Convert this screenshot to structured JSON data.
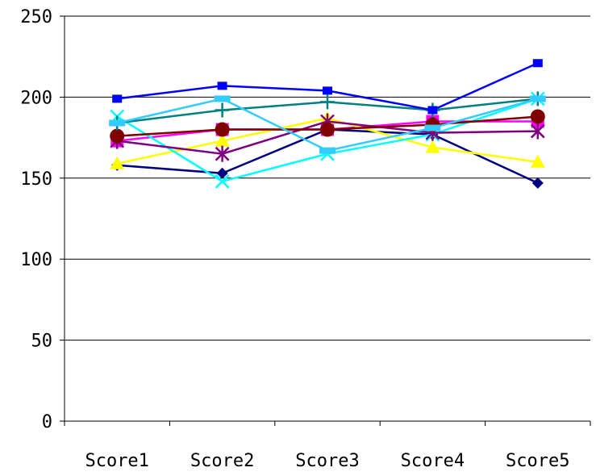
{
  "chart_data": {
    "type": "line",
    "title": "",
    "xlabel": "",
    "ylabel": "",
    "categories": [
      "Score1",
      "Score2",
      "Score3",
      "Score4",
      "Score5"
    ],
    "ylim": [
      0,
      250
    ],
    "yticks": [
      0,
      50,
      100,
      150,
      200,
      250
    ],
    "grid": "horizontal",
    "legend": "none",
    "series": [
      {
        "values": [
          158,
          153,
          180,
          177,
          147
        ],
        "color": "#000080",
        "marker": "diamond"
      },
      {
        "values": [
          173,
          180,
          180,
          185,
          185
        ],
        "color": "#FF00FF",
        "marker": "square"
      },
      {
        "values": [
          159,
          173,
          187,
          169,
          160
        ],
        "color": "#FFFF00",
        "marker": "triangle"
      },
      {
        "values": [
          188,
          148,
          165,
          177,
          199
        ],
        "color": "#00FFFF",
        "marker": "x"
      },
      {
        "values": [
          173,
          165,
          185,
          178,
          179
        ],
        "color": "#800080",
        "marker": "star"
      },
      {
        "values": [
          176,
          180,
          180,
          183,
          188
        ],
        "color": "#800000",
        "marker": "circle"
      },
      {
        "values": [
          184,
          192,
          197,
          192,
          199
        ],
        "color": "#008080",
        "marker": "plus"
      },
      {
        "values": [
          199,
          207,
          204,
          192,
          221
        ],
        "color": "#0000FF",
        "marker": "small-square"
      },
      {
        "values": [
          184,
          199,
          167,
          181,
          199
        ],
        "color": "#33CCFF",
        "marker": "dash"
      }
    ]
  }
}
